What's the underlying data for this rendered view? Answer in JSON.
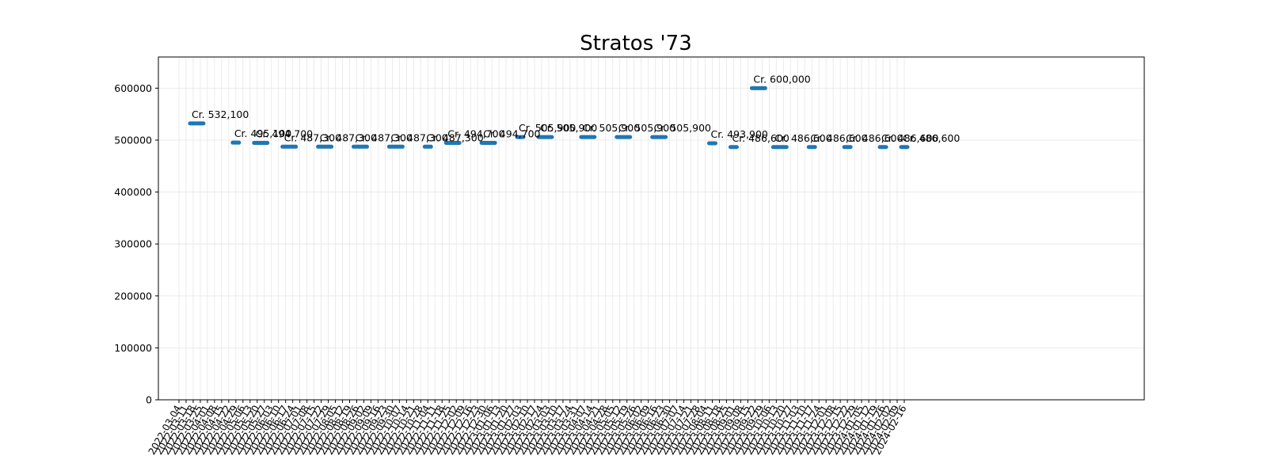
{
  "chart_data": {
    "type": "scatter",
    "title": "Stratos '73",
    "xlabel": "",
    "ylabel": "",
    "ylim": [
      0,
      660000
    ],
    "yticks": [
      0,
      100000,
      200000,
      300000,
      400000,
      500000,
      600000
    ],
    "ytick_labels": [
      "0",
      "100000",
      "200000",
      "300000",
      "400000",
      "500000",
      "600000"
    ],
    "grid": true,
    "x_categories": [
      "2022-03-04",
      "2022-03-11",
      "2022-03-18",
      "2022-03-25",
      "2022-04-01",
      "2022-04-08",
      "2022-04-15",
      "2022-04-22",
      "2022-04-29",
      "2022-05-06",
      "2022-05-13",
      "2022-05-20",
      "2022-05-27",
      "2022-06-03",
      "2022-06-10",
      "2022-06-17",
      "2022-06-24",
      "2022-07-01",
      "2022-07-08",
      "2022-07-15",
      "2022-07-22",
      "2022-07-29",
      "2022-08-05",
      "2022-08-12",
      "2022-08-19",
      "2022-08-26",
      "2022-09-02",
      "2022-09-09",
      "2022-09-16",
      "2022-09-23",
      "2022-09-30",
      "2022-10-07",
      "2022-10-14",
      "2022-10-21",
      "2022-10-28",
      "2022-11-04",
      "2022-11-11",
      "2022-11-18",
      "2022-11-25",
      "2022-12-02",
      "2022-12-09",
      "2022-12-16",
      "2022-12-23",
      "2022-12-30",
      "2023-01-06",
      "2023-01-13",
      "2023-01-20",
      "2023-01-27",
      "2023-02-03",
      "2023-02-10",
      "2023-02-17",
      "2023-02-24",
      "2023-03-03",
      "2023-03-10",
      "2023-03-17",
      "2023-03-24",
      "2023-03-31",
      "2023-04-07",
      "2023-04-14",
      "2023-04-21",
      "2023-04-28",
      "2023-05-05",
      "2023-05-12",
      "2023-05-19",
      "2023-05-26",
      "2023-06-02",
      "2023-06-09",
      "2023-06-16",
      "2023-06-23",
      "2023-06-30",
      "2023-07-07",
      "2023-07-14",
      "2023-07-21",
      "2023-07-28",
      "2023-08-04",
      "2023-08-11",
      "2023-08-18",
      "2023-08-25",
      "2023-09-01",
      "2023-09-08",
      "2023-09-15",
      "2023-09-22",
      "2023-09-29",
      "2023-10-06",
      "2023-10-13",
      "2023-10-20",
      "2023-10-27",
      "2023-11-03",
      "2023-11-10",
      "2023-11-17",
      "2023-11-24",
      "2023-12-01",
      "2023-12-08",
      "2023-12-15",
      "2023-12-22",
      "2023-12-29",
      "2024-01-05",
      "2024-01-12",
      "2024-01-19",
      "2024-01-26",
      "2024-02-02",
      "2024-02-09",
      "2024-02-16"
    ],
    "segments": [
      {
        "start": "2022-03-18",
        "end": "2022-03-25",
        "value": 532100,
        "label": "Cr. 532,100"
      },
      {
        "start": "2022-04-29",
        "end": "2022-04-29",
        "value": 495100,
        "label": "Cr. 495,100"
      },
      {
        "start": "2022-05-20",
        "end": "2022-05-27",
        "value": 494700,
        "label": "Cr. 494,700"
      },
      {
        "start": "2022-06-17",
        "end": "2022-06-24",
        "value": 487300,
        "label": "Cr. 487,300"
      },
      {
        "start": "2022-07-22",
        "end": "2022-07-29",
        "value": 487300,
        "label": "Cr. 487,300"
      },
      {
        "start": "2022-08-26",
        "end": "2022-09-02",
        "value": 487300,
        "label": "Cr. 487,300"
      },
      {
        "start": "2022-09-30",
        "end": "2022-10-07",
        "value": 487300,
        "label": "Cr. 487,300"
      },
      {
        "start": "2022-11-04",
        "end": "2022-11-04",
        "value": 487300,
        "label": "Cr. 487,300"
      },
      {
        "start": "2022-11-25",
        "end": "2022-12-02",
        "value": 494700,
        "label": "Cr. 494,700"
      },
      {
        "start": "2022-12-30",
        "end": "2023-01-06",
        "value": 494700,
        "label": "Cr. 494,700"
      },
      {
        "start": "2023-02-03",
        "end": "2023-02-03",
        "value": 505900,
        "label": "Cr. 505,900"
      },
      {
        "start": "2023-02-24",
        "end": "2023-03-03",
        "value": 505900,
        "label": "Cr. 505,900"
      },
      {
        "start": "2023-04-07",
        "end": "2023-04-14",
        "value": 505900,
        "label": "Cr. 505,900"
      },
      {
        "start": "2023-05-12",
        "end": "2023-05-19",
        "value": 505900,
        "label": "Cr. 505,900"
      },
      {
        "start": "2023-06-16",
        "end": "2023-06-23",
        "value": 505900,
        "label": "Cr. 505,900"
      },
      {
        "start": "2023-08-11",
        "end": "2023-08-11",
        "value": 493900,
        "label": "Cr. 493,900"
      },
      {
        "start": "2023-09-01",
        "end": "2023-09-01",
        "value": 486600,
        "label": "Cr. 486,600"
      },
      {
        "start": "2023-09-22",
        "end": "2023-09-29",
        "value": 600000,
        "label": "Cr. 600,000"
      },
      {
        "start": "2023-10-13",
        "end": "2023-10-20",
        "value": 486600,
        "label": "Cr. 486,600"
      },
      {
        "start": "2023-11-17",
        "end": "2023-11-17",
        "value": 486600,
        "label": "Cr. 486,600"
      },
      {
        "start": "2023-12-22",
        "end": "2023-12-22",
        "value": 486600,
        "label": "Cr. 486,600"
      },
      {
        "start": "2024-01-26",
        "end": "2024-01-26",
        "value": 486600,
        "label": "Cr. 486,600"
      },
      {
        "start": "2024-02-16",
        "end": "2024-02-16",
        "value": 486600,
        "label": "Cr. 486,600"
      }
    ],
    "color": "#1f77b4"
  }
}
